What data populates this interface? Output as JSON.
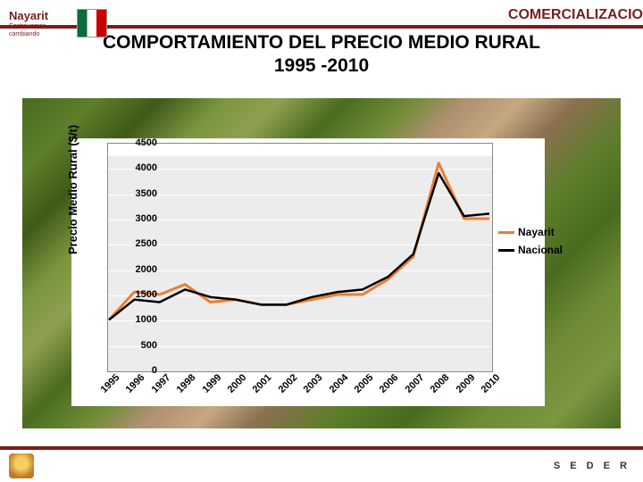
{
  "header": {
    "right_label": "COMERCIALIZACIO"
  },
  "title": "COMPORTAMIENTO  DEL PRECIO MEDIO RURAL",
  "subtitle": "1995 -2010",
  "logo": {
    "text_top": "Nayarit",
    "text_bottom": "Continuamos cambiando"
  },
  "footer": {
    "right_text": "S E D E R"
  },
  "chart": {
    "type": "line",
    "ylabel": "Precio Medio Rural ($/t)",
    "ylim": [
      0,
      4500
    ],
    "ytick_step": 500,
    "yticks": [
      0,
      500,
      1000,
      1500,
      2000,
      2500,
      3000,
      3500,
      4000,
      4500
    ],
    "years": [
      "1995",
      "1996",
      "1997",
      "1998",
      "1999",
      "2000",
      "2001",
      "2002",
      "2003",
      "2004",
      "2005",
      "2006",
      "2007",
      "2008",
      "2009",
      "2010"
    ],
    "series": [
      {
        "name": "Nayarit",
        "color": "#ed7d31",
        "line_width": 3,
        "values": [
          1000,
          1550,
          1500,
          1700,
          1350,
          1400,
          1300,
          1300,
          1400,
          1500,
          1500,
          1800,
          2250,
          4100,
          3000,
          3000
        ]
      },
      {
        "name": "Nacional",
        "color": "#000000",
        "line_width": 2.5,
        "values": [
          1000,
          1400,
          1350,
          1600,
          1450,
          1400,
          1300,
          1300,
          1450,
          1550,
          1600,
          1850,
          2300,
          3900,
          3050,
          3100
        ]
      }
    ],
    "background_color": "#ffffff",
    "plot_background": "#ececec",
    "grid_color": "#ffffff",
    "axis_color": "#888888",
    "tick_fontsize": 11,
    "label_fontsize": 13,
    "legend_fontsize": 12
  }
}
